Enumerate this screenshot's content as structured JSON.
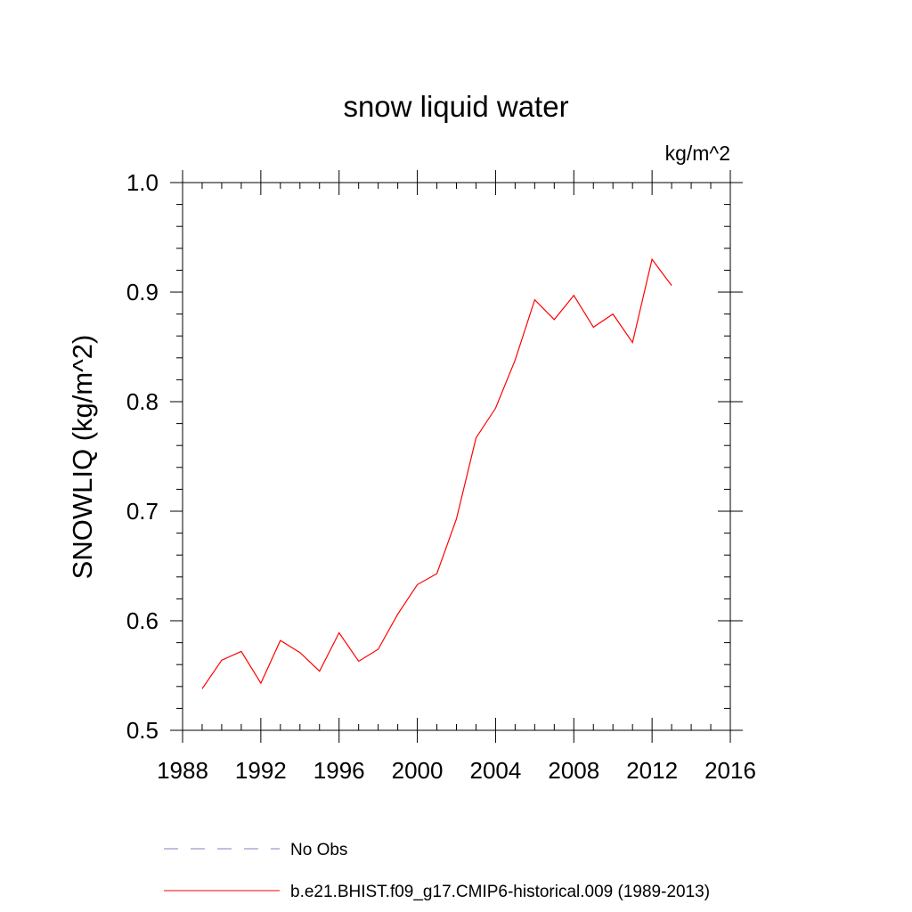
{
  "chart_data": {
    "type": "line",
    "title": "snow liquid water",
    "units_label": "kg/m^2",
    "ylabel": "SNOWLIQ  (kg/m^2)",
    "xlabel": "",
    "xlim": [
      1988,
      2016
    ],
    "ylim": [
      0.5,
      1.0
    ],
    "x_ticks": [
      1988,
      1992,
      1996,
      2000,
      2004,
      2008,
      2012,
      2016
    ],
    "x_tick_labels": [
      "1988",
      "1992",
      "1996",
      "2000",
      "2004",
      "2008",
      "2012",
      "2016"
    ],
    "y_ticks": [
      0.5,
      0.6,
      0.7,
      0.8,
      0.9,
      1.0
    ],
    "y_tick_labels": [
      "0.5",
      "0.6",
      "0.7",
      "0.8",
      "0.9",
      "1.0"
    ],
    "grid": false,
    "legend_position": "bottom",
    "series": [
      {
        "name": "b.e21.BHIST.f09_g17.CMIP6-historical.009 (1989-2013)",
        "color": "#ff0000",
        "style": "solid",
        "x": [
          1989,
          1990,
          1991,
          1992,
          1993,
          1994,
          1995,
          1996,
          1997,
          1998,
          1999,
          2000,
          2001,
          2002,
          2003,
          2004,
          2005,
          2006,
          2007,
          2008,
          2009,
          2010,
          2011,
          2012,
          2013
        ],
        "y": [
          0.538,
          0.564,
          0.572,
          0.543,
          0.582,
          0.571,
          0.554,
          0.589,
          0.563,
          0.574,
          0.606,
          0.633,
          0.643,
          0.693,
          0.767,
          0.794,
          0.838,
          0.893,
          0.875,
          0.897,
          0.868,
          0.88,
          0.854,
          0.93,
          0.906
        ]
      }
    ],
    "legend": [
      {
        "label": "No Obs",
        "color": "#8080c0",
        "style": "dashed"
      },
      {
        "label": "b.e21.BHIST.f09_g17.CMIP6-historical.009 (1989-2013)",
        "color": "#ff0000",
        "style": "solid"
      }
    ]
  }
}
